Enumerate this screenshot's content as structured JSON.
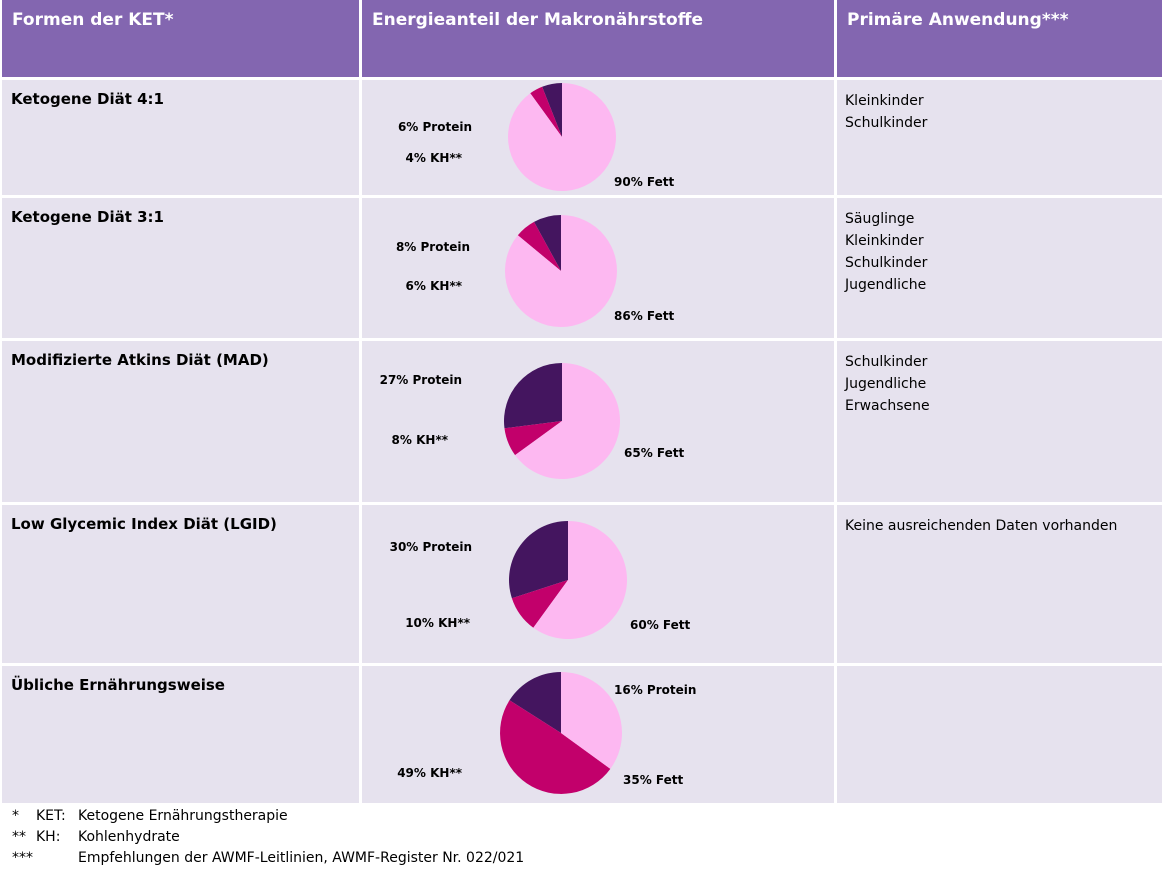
{
  "header": {
    "col1": "Formen der KET*",
    "col2": "Energieanteil der Makronährstoffe",
    "col3": "Primäre Anwendung***"
  },
  "rows": [
    {
      "name": "Ketogene Diät 4:1",
      "application": [
        "Kleinkinder",
        "Schulkinder"
      ]
    },
    {
      "name": "Ketogene Diät 3:1",
      "application": [
        "Säuglinge",
        "Kleinkinder",
        "Schulkinder",
        "Jugendliche"
      ]
    },
    {
      "name": "Modifizierte Atkins Diät (MAD)",
      "application": [
        "Schulkinder",
        "Jugendliche",
        "Erwachsene"
      ]
    },
    {
      "name": "Low Glycemic Index Diät (LGID)",
      "application": [
        "Keine ausreichenden Daten vorhanden"
      ]
    },
    {
      "name": "Übliche Ernährungsweise",
      "application": []
    }
  ],
  "colors": {
    "header_bg": "#8366b0",
    "cell_bg": "#e6e2ee",
    "protein": "#44155f",
    "kh": "#c2006b",
    "fett": "#fdb8f1"
  },
  "chart_data": [
    {
      "type": "pie",
      "title": "Ketogene Diät 4:1",
      "slices": [
        {
          "name": "Protein",
          "value": 6,
          "label": "6% Protein"
        },
        {
          "name": "KH",
          "value": 4,
          "label": "4% KH**"
        },
        {
          "name": "Fett",
          "value": 90,
          "label": "90% Fett"
        }
      ]
    },
    {
      "type": "pie",
      "title": "Ketogene Diät 3:1",
      "slices": [
        {
          "name": "Protein",
          "value": 8,
          "label": "8% Protein"
        },
        {
          "name": "KH",
          "value": 6,
          "label": "6% KH**"
        },
        {
          "name": "Fett",
          "value": 86,
          "label": "86% Fett"
        }
      ]
    },
    {
      "type": "pie",
      "title": "Modifizierte Atkins Diät (MAD)",
      "slices": [
        {
          "name": "Protein",
          "value": 27,
          "label": "27% Protein"
        },
        {
          "name": "KH",
          "value": 8,
          "label": "8% KH**"
        },
        {
          "name": "Fett",
          "value": 65,
          "label": "65% Fett"
        }
      ]
    },
    {
      "type": "pie",
      "title": "Low Glycemic Index Diät (LGID)",
      "slices": [
        {
          "name": "Protein",
          "value": 30,
          "label": "30% Protein"
        },
        {
          "name": "KH",
          "value": 10,
          "label": "10% KH**"
        },
        {
          "name": "Fett",
          "value": 60,
          "label": "60% Fett"
        }
      ]
    },
    {
      "type": "pie",
      "title": "Übliche Ernährungsweise",
      "slices": [
        {
          "name": "Protein",
          "value": 16,
          "label": "16% Protein"
        },
        {
          "name": "KH",
          "value": 49,
          "label": "49% KH**"
        },
        {
          "name": "Fett",
          "value": 35,
          "label": "35% Fett"
        }
      ]
    }
  ],
  "footnotes": [
    {
      "mark": "*",
      "abbr": "KET:",
      "text": "Ketogene Ernährungstherapie"
    },
    {
      "mark": "**",
      "abbr": "KH:",
      "text": "Kohlenhydrate"
    },
    {
      "mark": "***",
      "abbr": "",
      "text": "Empfehlungen der AWMF-Leitlinien, AWMF-Register Nr. 022/021"
    }
  ]
}
